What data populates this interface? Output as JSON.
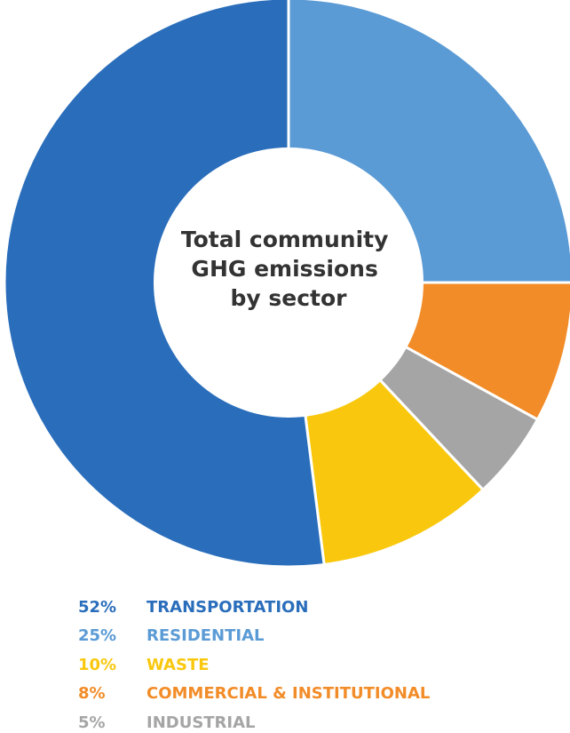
{
  "chart_data": {
    "type": "pie",
    "donut": true,
    "center_text": [
      "Total community",
      "GHG emissions",
      "by sector"
    ],
    "slices": [
      {
        "label": "TRANSPORTATION",
        "percent_label": "52%",
        "value": 52,
        "color": "#2A6EBB"
      },
      {
        "label": "RESIDENTIAL",
        "percent_label": "25%",
        "value": 25,
        "color": "#5B9BD5"
      },
      {
        "label": "WASTE",
        "percent_label": "10%",
        "value": 10,
        "color": "#F9C80E"
      },
      {
        "label": "COMMERCIAL & INSTITUTIONAL",
        "percent_label": "8%",
        "value": 8,
        "color": "#F28C28"
      },
      {
        "label": "INDUSTRIAL",
        "percent_label": "5%",
        "value": 5,
        "color": "#A5A5A5"
      }
    ],
    "clockwise_order": [
      "RESIDENTIAL",
      "COMMERCIAL & INSTITUTIONAL",
      "INDUSTRIAL",
      "WASTE",
      "TRANSPORTATION"
    ],
    "center_text_color": "#333333"
  }
}
